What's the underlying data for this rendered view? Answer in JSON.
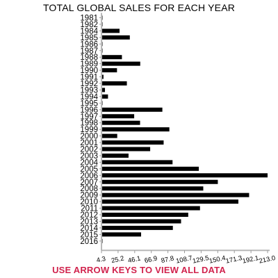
{
  "chart_data": {
    "type": "bar",
    "orientation": "horizontal",
    "title": "TOTAL GLOBAL SALES FOR EACH YEAR",
    "categories": [
      "1981",
      "1982",
      "1984",
      "1985",
      "1986",
      "1987",
      "1988",
      "1989",
      "1990",
      "1991",
      "1992",
      "1993",
      "1994",
      "1995",
      "1996",
      "1997",
      "1998",
      "1999",
      "2000",
      "2001",
      "2002",
      "2003",
      "2004",
      "2005",
      "2006",
      "2007",
      "2008",
      "2009",
      "2010",
      "2011",
      "2012",
      "2013",
      "2014",
      "2015",
      "2016"
    ],
    "values": [
      4.3,
      5.4,
      27.0,
      39.9,
      5.0,
      4.3,
      30.0,
      53.0,
      23.8,
      6.8,
      36.2,
      8.7,
      12.5,
      4.3,
      80.8,
      45.4,
      52.8,
      89.6,
      24.1,
      82.4,
      65.5,
      38.3,
      93.6,
      126.6,
      213.0,
      150.5,
      132.2,
      189.8,
      176.3,
      128.1,
      113.3,
      104.3,
      94.0,
      54.1,
      4.3
    ],
    "xticks": [
      "4.3",
      "25.2",
      "46.1",
      "66.9",
      "87.8",
      "108.7",
      "129.5",
      "150.4",
      "171.3",
      "192.1",
      "213.0"
    ],
    "xlim": [
      4.3,
      213.0
    ],
    "xlabel": "",
    "ylabel": "",
    "bar_color": "#000000",
    "grid": false
  },
  "footer": {
    "hint": "USE ARROW KEYS TO VIEW ALL DATA",
    "hint_color": "#d1234d"
  }
}
